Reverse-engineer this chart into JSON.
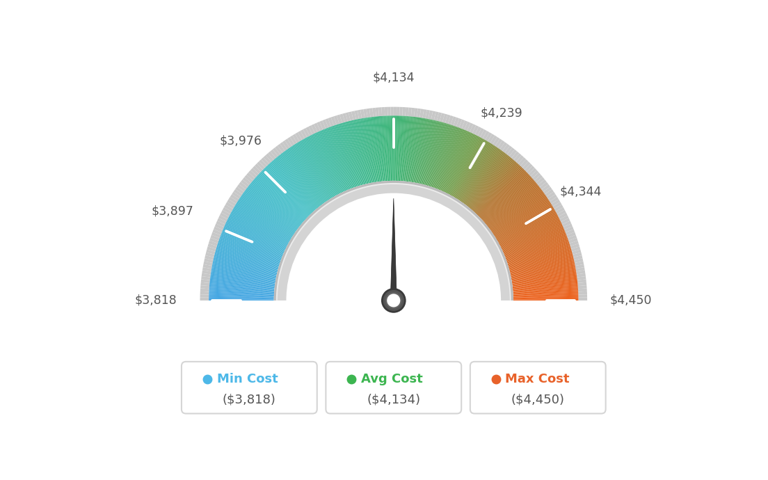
{
  "min_val": 3818,
  "avg_val": 4134,
  "max_val": 4450,
  "tick_labels": [
    "$3,818",
    "$3,897",
    "$3,976",
    "$4,134",
    "$4,239",
    "$4,344",
    "$4,450"
  ],
  "tick_values": [
    3818,
    3897,
    3976,
    4134,
    4239,
    4344,
    4450
  ],
  "legend": [
    {
      "label": "Min Cost",
      "value": "($3,818)",
      "color": "#4db8e8"
    },
    {
      "label": "Avg Cost",
      "value": "($4,134)",
      "color": "#3cb550"
    },
    {
      "label": "Max Cost",
      "value": "($4,450)",
      "color": "#e8622a"
    }
  ],
  "background_color": "#ffffff",
  "needle_value": 4134,
  "color_stops": [
    [
      0.0,
      [
        0.27,
        0.65,
        0.89
      ]
    ],
    [
      0.25,
      [
        0.27,
        0.75,
        0.78
      ]
    ],
    [
      0.5,
      [
        0.24,
        0.71,
        0.47
      ]
    ],
    [
      0.65,
      [
        0.45,
        0.62,
        0.3
      ]
    ],
    [
      0.75,
      [
        0.7,
        0.45,
        0.18
      ]
    ],
    [
      1.0,
      [
        0.93,
        0.38,
        0.11
      ]
    ]
  ]
}
